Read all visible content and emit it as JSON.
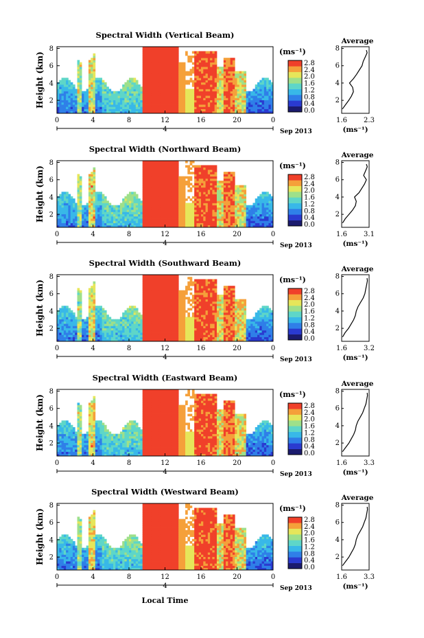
{
  "colorbar_unit": "(ms⁻¹)",
  "colorbar_ticks": [
    "2.8",
    "2.4",
    "2.0",
    "1.6",
    "1.2",
    "0.8",
    "0.4",
    "0.0"
  ],
  "x_ticks": [
    "0",
    "4",
    "8",
    "12",
    "16",
    "20",
    "0"
  ],
  "y_ticks": [
    "8",
    "6",
    "4",
    "2"
  ],
  "ylabel": "Height (km)",
  "date_day": "4",
  "date_label": "Sep 2013",
  "xlabel": "Local Time",
  "avg_title": "Average",
  "avg_unit": "(ms⁻¹)",
  "colors": {
    "scale": [
      "#1b1b6e",
      "#2a3ad0",
      "#2f7fe8",
      "#38b8e8",
      "#5ed6c8",
      "#9ee08a",
      "#e6e65a",
      "#f5a03a",
      "#f0402a"
    ],
    "curve": "#000000"
  },
  "chart_data": [
    {
      "type": "heatmap",
      "title": "Spectral Width (Vertical Beam)",
      "xlabel": "",
      "ylabel": "Height (km)",
      "xlim": [
        0,
        24
      ],
      "ylim": [
        0.5,
        8.2
      ],
      "zlim": [
        0.0,
        2.8
      ],
      "avg_profile": {
        "xlim": [
          1.6,
          2.3
        ],
        "x_tick_labels": [
          "1.6",
          "2.3"
        ],
        "height": [
          1.0,
          1.5,
          2.0,
          2.5,
          3.0,
          3.5,
          4.0,
          4.5,
          5.0,
          5.5,
          6.0,
          6.5,
          7.0,
          7.5,
          7.8
        ],
        "width": [
          1.62,
          1.7,
          1.78,
          1.85,
          1.9,
          1.88,
          1.8,
          1.9,
          1.98,
          2.05,
          2.12,
          2.15,
          2.2,
          2.25,
          2.23
        ]
      }
    },
    {
      "type": "heatmap",
      "title": "Spectral Width (Northward Beam)",
      "xlabel": "",
      "ylabel": "Height (km)",
      "xlim": [
        0,
        24
      ],
      "ylim": [
        0.5,
        8.2
      ],
      "zlim": [
        0.0,
        2.8
      ],
      "avg_profile": {
        "xlim": [
          1.6,
          3.1
        ],
        "x_tick_labels": [
          "1.6",
          "3.1"
        ],
        "height": [
          1.0,
          1.5,
          2.0,
          2.5,
          3.0,
          3.5,
          4.0,
          4.5,
          5.0,
          5.5,
          6.0,
          6.5,
          7.0,
          7.5,
          7.8
        ],
        "width": [
          1.65,
          1.8,
          2.0,
          2.2,
          2.35,
          2.4,
          2.3,
          2.55,
          2.7,
          2.85,
          2.95,
          2.8,
          2.9,
          3.0,
          2.95
        ]
      }
    },
    {
      "type": "heatmap",
      "title": "Spectral Width (Southward Beam)",
      "xlabel": "",
      "ylabel": "Height (km)",
      "xlim": [
        0,
        24
      ],
      "ylim": [
        0.5,
        8.2
      ],
      "zlim": [
        0.0,
        2.8
      ],
      "avg_profile": {
        "xlim": [
          1.6,
          3.2
        ],
        "x_tick_labels": [
          "1.6",
          "3.2"
        ],
        "height": [
          1.0,
          1.5,
          2.0,
          2.5,
          3.0,
          3.5,
          4.0,
          4.5,
          5.0,
          5.5,
          6.0,
          6.5,
          7.0,
          7.5,
          7.8
        ],
        "width": [
          1.65,
          1.8,
          2.0,
          2.15,
          2.3,
          2.4,
          2.45,
          2.55,
          2.7,
          2.85,
          2.95,
          3.0,
          3.05,
          3.1,
          3.08
        ]
      }
    },
    {
      "type": "heatmap",
      "title": "Spectral Width (Eastward Beam)",
      "xlabel": "",
      "ylabel": "Height (km)",
      "xlim": [
        0,
        24
      ],
      "ylim": [
        0.5,
        8.2
      ],
      "zlim": [
        0.0,
        2.8
      ],
      "avg_profile": {
        "xlim": [
          1.6,
          3.3
        ],
        "x_tick_labels": [
          "1.6",
          "3.3"
        ],
        "height": [
          1.0,
          1.5,
          2.0,
          2.5,
          3.0,
          3.5,
          4.0,
          4.5,
          5.0,
          5.5,
          6.0,
          6.5,
          7.0,
          7.5,
          7.8
        ],
        "width": [
          1.65,
          1.85,
          2.05,
          2.2,
          2.35,
          2.45,
          2.5,
          2.6,
          2.75,
          2.9,
          3.0,
          3.1,
          3.15,
          3.2,
          3.18
        ]
      }
    },
    {
      "type": "heatmap",
      "title": "Spectral Width (Westward Beam)",
      "xlabel": "Local Time",
      "ylabel": "Height (km)",
      "xlim": [
        0,
        24
      ],
      "ylim": [
        0.5,
        8.2
      ],
      "zlim": [
        0.0,
        2.8
      ],
      "avg_profile": {
        "xlim": [
          1.6,
          3.3
        ],
        "x_tick_labels": [
          "1.6",
          "3.3"
        ],
        "height": [
          1.0,
          1.5,
          2.0,
          2.5,
          3.0,
          3.5,
          4.0,
          4.5,
          5.0,
          5.5,
          6.0,
          6.5,
          7.0,
          7.5,
          7.8
        ],
        "width": [
          1.65,
          1.85,
          2.05,
          2.2,
          2.35,
          2.45,
          2.5,
          2.6,
          2.75,
          2.9,
          3.0,
          3.1,
          3.15,
          3.2,
          3.18
        ]
      }
    }
  ]
}
